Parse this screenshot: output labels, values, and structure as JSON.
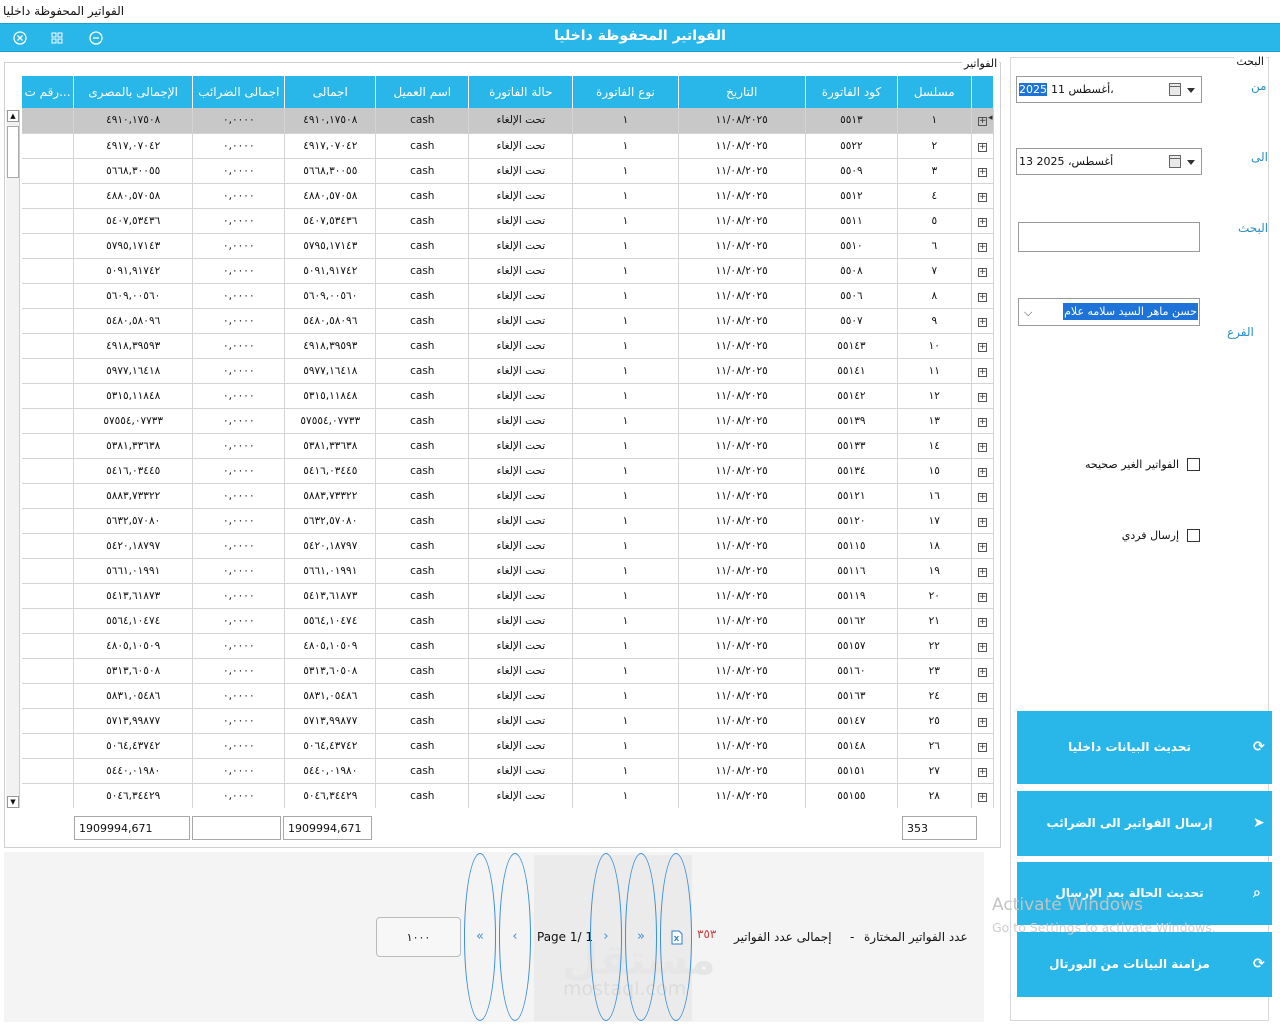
{
  "window": {
    "title": "الفواتير المحفوظة داخليا",
    "header_title": "الفواتير المحفوظة داخليا",
    "accent_color": "#29b6e8"
  },
  "filters": {
    "caption": "البحث",
    "from_label": "من",
    "from_date_prefix": "11 أغسطس، ",
    "from_date_year": "2025",
    "to_label": "الى",
    "to_date": "13 أغسطس، 2025",
    "search_label": "البحث",
    "search_value": "",
    "branch_label": "الفرع",
    "branch_value": "حسن ماهر السيد سلامه علام",
    "invalid_invoices_label": "الفواتير الغير صحيحه",
    "individual_send_label": "إرسال فردي"
  },
  "actions": {
    "refresh_internal": "تحديث البيانات داخليا",
    "send_to_tax": "إرسال الفواتير الى الضرائب",
    "update_status": "تحديث الحالة بعد الإرسال",
    "sync_portal": "مزامنة البيانات من البورتال"
  },
  "grid": {
    "caption": "الفواتير",
    "columns": [
      "مسلسل",
      "كود الفاتورة",
      "التاريخ",
      "نوع الفاتورة",
      "حالة الفاتورة",
      "اسم العميل",
      "اجمالى",
      "اجمالى الضرائب",
      "الإجمالى بالمصرى",
      "رقم ت..."
    ],
    "rows": [
      [
        "١",
        "٥٥١٣",
        "١١/٠٨/٢٠٢٥",
        "١",
        "تحت الإلغاء",
        "cash",
        "٤٩١٠,١٧٥٠٨",
        "٠,٠٠٠٠",
        "٤٩١٠,١٧٥٠٨"
      ],
      [
        "٢",
        "٥٥٢٢",
        "١١/٠٨/٢٠٢٥",
        "١",
        "تحت الإلغاء",
        "cash",
        "٤٩١٧,٠٧٠٤٢",
        "٠,٠٠٠٠",
        "٤٩١٧,٠٧٠٤٢"
      ],
      [
        "٣",
        "٥٥٠٩",
        "١١/٠٨/٢٠٢٥",
        "١",
        "تحت الإلغاء",
        "cash",
        "٥٦٦٨,٣٠٠٥٥",
        "٠,٠٠٠٠",
        "٥٦٦٨,٣٠٠٥٥"
      ],
      [
        "٤",
        "٥٥١٢",
        "١١/٠٨/٢٠٢٥",
        "١",
        "تحت الإلغاء",
        "cash",
        "٤٨٨٠,٥٧٠٥٨",
        "٠,٠٠٠٠",
        "٤٨٨٠,٥٧٠٥٨"
      ],
      [
        "٥",
        "٥٥١١",
        "١١/٠٨/٢٠٢٥",
        "١",
        "تحت الإلغاء",
        "cash",
        "٥٤٠٧,٥٣٤٣٦",
        "٠,٠٠٠٠",
        "٥٤٠٧,٥٣٤٣٦"
      ],
      [
        "٦",
        "٥٥١٠",
        "١١/٠٨/٢٠٢٥",
        "١",
        "تحت الإلغاء",
        "cash",
        "٥٧٩٥,١٧١٤٣",
        "٠,٠٠٠٠",
        "٥٧٩٥,١٧١٤٣"
      ],
      [
        "٧",
        "٥٥٠٨",
        "١١/٠٨/٢٠٢٥",
        "١",
        "تحت الإلغاء",
        "cash",
        "٥٠٩١,٩١٧٤٢",
        "٠,٠٠٠٠",
        "٥٠٩١,٩١٧٤٢"
      ],
      [
        "٨",
        "٥٥٠٦",
        "١١/٠٨/٢٠٢٥",
        "١",
        "تحت الإلغاء",
        "cash",
        "٥٦٠٩,٠٠٥٦٠",
        "٠,٠٠٠٠",
        "٥٦٠٩,٠٠٥٦٠"
      ],
      [
        "٩",
        "٥٥٠٧",
        "١١/٠٨/٢٠٢٥",
        "١",
        "تحت الإلغاء",
        "cash",
        "٥٤٨٠,٥٨٠٩٦",
        "٠,٠٠٠٠",
        "٥٤٨٠,٥٨٠٩٦"
      ],
      [
        "١٠",
        "٥٥١٤٣",
        "١١/٠٨/٢٠٢٥",
        "١",
        "تحت الإلغاء",
        "cash",
        "٤٩١٨,٣٩٥٩٣",
        "٠,٠٠٠٠",
        "٤٩١٨,٣٩٥٩٣"
      ],
      [
        "١١",
        "٥٥١٤١",
        "١١/٠٨/٢٠٢٥",
        "١",
        "تحت الإلغاء",
        "cash",
        "٥٩٧٧,١٦٤١٨",
        "٠,٠٠٠٠",
        "٥٩٧٧,١٦٤١٨"
      ],
      [
        "١٢",
        "٥٥١٤٢",
        "١١/٠٨/٢٠٢٥",
        "١",
        "تحت الإلغاء",
        "cash",
        "٥٣١٥,١١٨٤٨",
        "٠,٠٠٠٠",
        "٥٣١٥,١١٨٤٨"
      ],
      [
        "١٣",
        "٥٥١٣٩",
        "١١/٠٨/٢٠٢٥",
        "١",
        "تحت الإلغاء",
        "cash",
        "٥٧٥٥٤,٠٧٧٣٣",
        "٠,٠٠٠٠",
        "٥٧٥٥٤,٠٧٧٣٣"
      ],
      [
        "١٤",
        "٥٥١٣٣",
        "١١/٠٨/٢٠٢٥",
        "١",
        "تحت الإلغاء",
        "cash",
        "٥٣٨١,٣٣٦٣٨",
        "٠,٠٠٠٠",
        "٥٣٨١,٣٣٦٣٨"
      ],
      [
        "١٥",
        "٥٥١٣٤",
        "١١/٠٨/٢٠٢٥",
        "١",
        "تحت الإلغاء",
        "cash",
        "٥٤١٦,٠٣٤٤٥",
        "٠,٠٠٠٠",
        "٥٤١٦,٠٣٤٤٥"
      ],
      [
        "١٦",
        "٥٥١٢١",
        "١١/٠٨/٢٠٢٥",
        "١",
        "تحت الإلغاء",
        "cash",
        "٥٨٨٣,٧٣٣٢٢",
        "٠,٠٠٠٠",
        "٥٨٨٣,٧٣٣٢٢"
      ],
      [
        "١٧",
        "٥٥١٢٠",
        "١١/٠٨/٢٠٢٥",
        "١",
        "تحت الإلغاء",
        "cash",
        "٥٦٣٢,٥٧٠٨٠",
        "٠,٠٠٠٠",
        "٥٦٣٢,٥٧٠٨٠"
      ],
      [
        "١٨",
        "٥٥١١٥",
        "١١/٠٨/٢٠٢٥",
        "١",
        "تحت الإلغاء",
        "cash",
        "٥٤٢٠,١٨٧٩٧",
        "٠,٠٠٠٠",
        "٥٤٢٠,١٨٧٩٧"
      ],
      [
        "١٩",
        "٥٥١١٦",
        "١١/٠٨/٢٠٢٥",
        "١",
        "تحت الإلغاء",
        "cash",
        "٥٦٦١,٠١٩٩١",
        "٠,٠٠٠٠",
        "٥٦٦١,٠١٩٩١"
      ],
      [
        "٢٠",
        "٥٥١١٩",
        "١١/٠٨/٢٠٢٥",
        "١",
        "تحت الإلغاء",
        "cash",
        "٥٤١٣,٦١٨٧٣",
        "٠,٠٠٠٠",
        "٥٤١٣,٦١٨٧٣"
      ],
      [
        "٢١",
        "٥٥١٦٢",
        "١١/٠٨/٢٠٢٥",
        "١",
        "تحت الإلغاء",
        "cash",
        "٥٥٦٤,١٠٤٧٤",
        "٠,٠٠٠٠",
        "٥٥٦٤,١٠٤٧٤"
      ],
      [
        "٢٢",
        "٥٥١٥٧",
        "١١/٠٨/٢٠٢٥",
        "١",
        "تحت الإلغاء",
        "cash",
        "٤٨٠٥,١٠٥٠٩",
        "٠,٠٠٠٠",
        "٤٨٠٥,١٠٥٠٩"
      ],
      [
        "٢٣",
        "٥٥١٦٠",
        "١١/٠٨/٢٠٢٥",
        "١",
        "تحت الإلغاء",
        "cash",
        "٥٣١٣,٦٠٥٠٨",
        "٠,٠٠٠٠",
        "٥٣١٣,٦٠٥٠٨"
      ],
      [
        "٢٤",
        "٥٥١٦٣",
        "١١/٠٨/٢٠٢٥",
        "١",
        "تحت الإلغاء",
        "cash",
        "٥٨٣١,٠٥٤٨٦",
        "٠,٠٠٠٠",
        "٥٨٣١,٠٥٤٨٦"
      ],
      [
        "٢٥",
        "٥٥١٤٧",
        "١١/٠٨/٢٠٢٥",
        "١",
        "تحت الإلغاء",
        "cash",
        "٥٧١٣,٩٩٨٧٧",
        "٠,٠٠٠٠",
        "٥٧١٣,٩٩٨٧٧"
      ],
      [
        "٢٦",
        "٥٥١٤٨",
        "١١/٠٨/٢٠٢٥",
        "١",
        "تحت الإلغاء",
        "cash",
        "٥٠٦٤,٤٣٧٤٢",
        "٠,٠٠٠٠",
        "٥٠٦٤,٤٣٧٤٢"
      ],
      [
        "٢٧",
        "٥٥١٥١",
        "١١/٠٨/٢٠٢٥",
        "١",
        "تحت الإلغاء",
        "cash",
        "٥٤٤٠,٠١٩٨٠",
        "٠,٠٠٠٠",
        "٥٤٤٠,٠١٩٨٠"
      ],
      [
        "٢٨",
        "٥٥١٥٥",
        "١١/٠٨/٢٠٢٥",
        "١",
        "تحت الإلغاء",
        "cash",
        "٥٠٤٦,٣٤٤٢٩",
        "٠,٠٠٠٠",
        "٥٠٤٦,٣٤٤٢٩"
      ]
    ],
    "footer": {
      "row_count": "353",
      "total": "1909994,671",
      "tax_total": "",
      "egp_total": "1909994,671"
    }
  },
  "pager": {
    "page_size": "١٠٠٠",
    "page_label": "Page 1/ 1",
    "first": "«",
    "prev": "‹",
    "next": "›",
    "last": "»",
    "selected_count_label": "عدد الفواتير المختارة",
    "separator": "-",
    "total_count_label": "إجمالى عدد الفواتير",
    "total_count_value": "٣٥٣"
  },
  "watermark": {
    "brand": "مستقل",
    "domain": "mostaql.com",
    "activate_title": "Activate Windows",
    "activate_hint": "Go to Settings to activate Windows."
  }
}
